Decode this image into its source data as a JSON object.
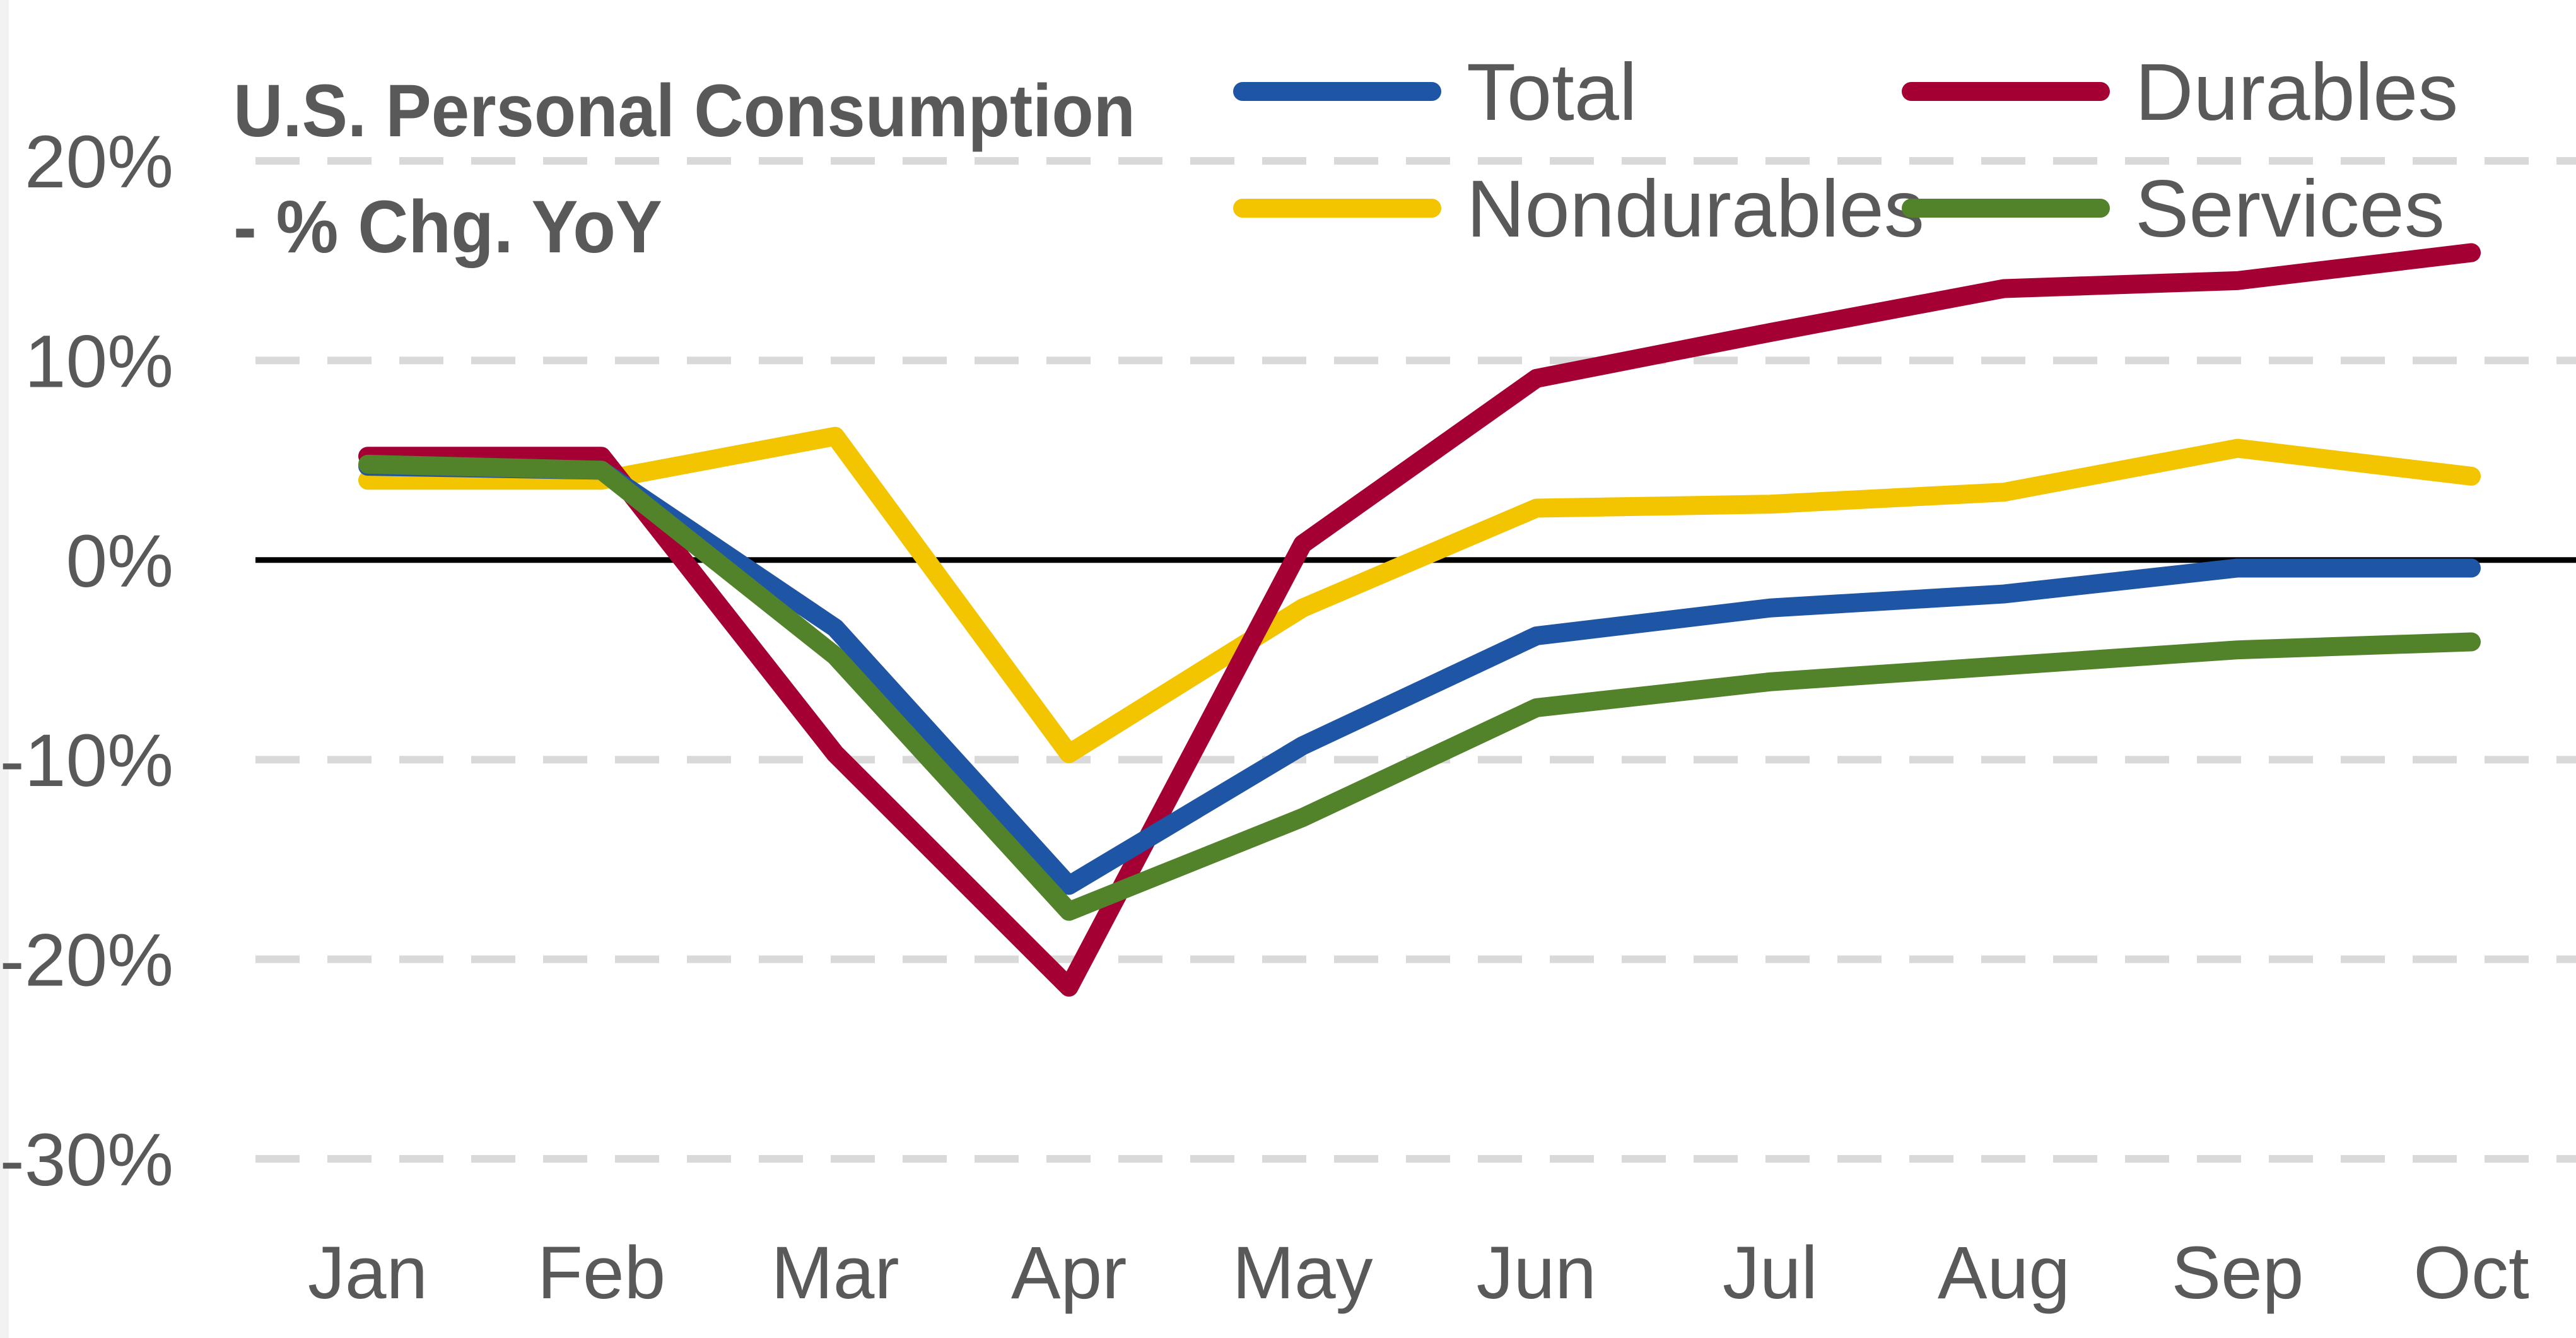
{
  "chart_data": {
    "type": "line",
    "title": "U.S. Personal Consumption",
    "subtitle": "- % Chg. YoY",
    "xlabel": "",
    "ylabel": "",
    "categories": [
      "Jan",
      "Feb",
      "Mar",
      "Apr",
      "May",
      "Jun",
      "Jul",
      "Aug",
      "Sep",
      "Oct"
    ],
    "ylim": [
      -30,
      20
    ],
    "yticks": [
      20,
      10,
      0,
      -10,
      -20,
      -30
    ],
    "ytick_labels": [
      "20%",
      "10%",
      "0%",
      "-10%",
      "-20%",
      "-30%"
    ],
    "grid": true,
    "legend_position": "top-right",
    "series": [
      {
        "name": "Total",
        "color": "#1f55a5",
        "values": [
          4.7,
          4.5,
          -3.4,
          -16.3,
          -9.3,
          -3.8,
          -2.4,
          -1.7,
          -0.4,
          -0.4
        ]
      },
      {
        "name": "Durables",
        "color": "#a50034",
        "values": [
          5.2,
          5.2,
          -9.7,
          -21.4,
          0.8,
          9.1,
          11.4,
          13.6,
          14.0,
          15.4
        ]
      },
      {
        "name": "Nondurables",
        "color": "#f2c500",
        "values": [
          4.0,
          4.0,
          6.2,
          -9.7,
          -2.4,
          2.6,
          2.8,
          3.4,
          5.6,
          4.2
        ]
      },
      {
        "name": "Services",
        "color": "#52832b",
        "values": [
          4.8,
          4.5,
          -4.8,
          -17.6,
          -12.9,
          -7.4,
          -6.1,
          -5.3,
          -4.5,
          -4.1
        ]
      }
    ]
  }
}
